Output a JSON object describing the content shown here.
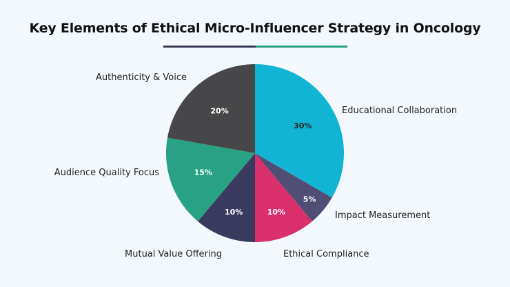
{
  "title": "Key Elements of Ethical Micro-Influencer Strategy in Oncology",
  "colors": {
    "underline_left": "#3b3a55",
    "underline_right": "#25a184"
  },
  "chart_data": {
    "type": "pie",
    "title": "Key Elements of Ethical Micro-Influencer Strategy in Oncology",
    "slices": [
      {
        "label": "Educational Collaboration",
        "value": 30,
        "value_label": "30%",
        "color": "#12b4d3",
        "text_color": "#1f1f1f"
      },
      {
        "label": "Impact Measurement",
        "value": 5,
        "value_label": "5%",
        "color": "#504e75",
        "text_color": "#ffffff"
      },
      {
        "label": "Ethical Compliance",
        "value": 10,
        "value_label": "10%",
        "color": "#d92f6c",
        "text_color": "#ffffff"
      },
      {
        "label": "Mutual Value Offering",
        "value": 10,
        "value_label": "10%",
        "color": "#3a3a5e",
        "text_color": "#ffffff"
      },
      {
        "label": "Audience Quality Focus",
        "value": 15,
        "value_label": "15%",
        "color": "#28a184",
        "text_color": "#ffffff"
      },
      {
        "label": "Authenticity & Voice",
        "value": 20,
        "value_label": "20%",
        "color": "#474749",
        "text_color": "#ffffff"
      }
    ]
  }
}
